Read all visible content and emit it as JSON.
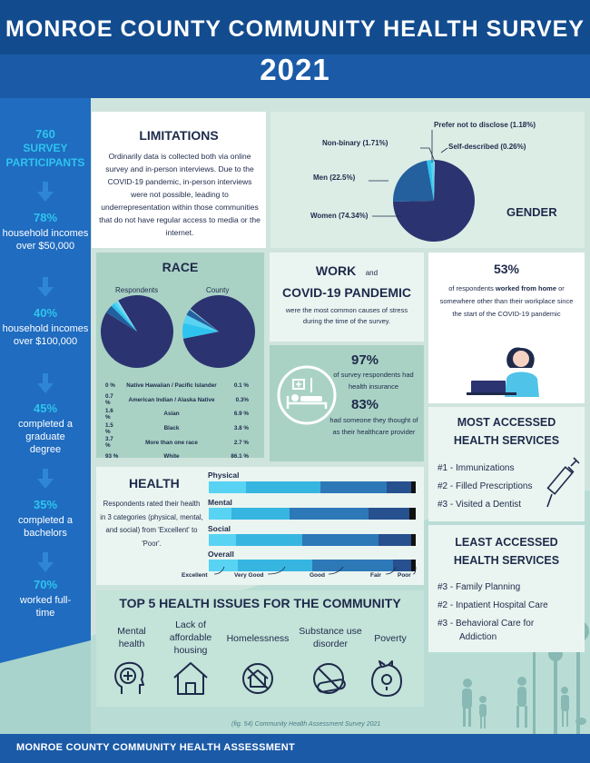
{
  "header": {
    "title": "MONROE COUNTY COMMUNITY HEALTH SURVEY",
    "year": "2021"
  },
  "colors": {
    "navy": "#2b3370",
    "mid_blue": "#245f9e",
    "light_blue": "#2ec4ef",
    "cyan": "#58d3f3",
    "accent": "#1f6cc0"
  },
  "sidebar": {
    "stats": [
      {
        "value": "760",
        "label": "SURVEY PARTICIPANTS"
      },
      {
        "value": "78%",
        "label": "household incomes over $50,000"
      },
      {
        "value": "40%",
        "label": "household incomes over $100,000"
      },
      {
        "value": "45%",
        "label": "completed a graduate degree"
      },
      {
        "value": "35%",
        "label": "completed a bachelors"
      },
      {
        "value": "70%",
        "label": "worked full-time"
      }
    ]
  },
  "limitations": {
    "title": "LIMITATIONS",
    "text": "Ordinarily data is collected both via online survey and in-person interviews. Due to the COVID-19 pandemic, in-person interviews were not possible, leading to underrepresentation within those communities that do not have regular access to media or the internet."
  },
  "gender": {
    "title": "GENDER",
    "labels": {
      "women": "Women (74.34%)",
      "men": "Men (22.5%)",
      "nonbinary": "Non-binary (1.71%)",
      "prefer_not": "Prefer not to disclose (1.18%)",
      "self_described": "Self-described (0.26%)"
    }
  },
  "race": {
    "title": "RACE",
    "respondents_label": "Respondents",
    "county_label": "County",
    "rows": [
      {
        "resp": "0 %",
        "name": "Native Hawaiian / Pacific Islander",
        "county": "0.1 %"
      },
      {
        "resp": "0.7 %",
        "name": "American Indian / Alaska Native",
        "county": "0.3%"
      },
      {
        "resp": "1.6 %",
        "name": "Asian",
        "county": "6.9 %"
      },
      {
        "resp": "1.5 %",
        "name": "Black",
        "county": "3.8 %"
      },
      {
        "resp": "3.7 %",
        "name": "More than one race",
        "county": "2.7 %"
      },
      {
        "resp": "93 %",
        "name": "White",
        "county": "86.1 %"
      }
    ]
  },
  "work": {
    "title_a": "WORK",
    "and": "and",
    "title_b": "COVID-19 PANDEMIC",
    "text": "were the most common causes of stress during the time of the survey."
  },
  "remote": {
    "pct": "53%",
    "pre": "of respondents ",
    "bold": "worked from home",
    "post": " or somewhere other than their workplace since the start of the COVID-19 pandemic"
  },
  "insurance": {
    "pct1": "97%",
    "text1": "of survey respondents had health insurance",
    "pct2": "83%",
    "text2": "had someone they thought of as their healthcare provider"
  },
  "most_accessed": {
    "title_a": "MOST ACCESSED",
    "title_b": "HEALTH SERVICES",
    "items": [
      "#1 - Immunizations",
      "#2 - Filled Prescriptions",
      "#3 - Visited a Dentist"
    ]
  },
  "least_accessed": {
    "title_a": "LEAST ACCESSED",
    "title_b": "HEALTH SERVICES",
    "items": [
      "#3 - Family Planning",
      "#2 - Inpatient Hospital Care",
      "#3 - Behavioral Care for"
    ],
    "items_bold": "Addiction"
  },
  "health": {
    "title": "HEALTH",
    "text": "Respondents rated their health in 3 categories (physical, mental, and social) from 'Excellent' to 'Poor'.",
    "legend": [
      "Excellent",
      "Very Good",
      "Good",
      "Fair",
      "Poor"
    ]
  },
  "issues": {
    "title": "TOP 5 HEALTH ISSUES FOR THE COMMUNITY",
    "items": [
      "Mental health",
      "Lack of affordable housing",
      "Homelessness",
      "Substance use disorder",
      "Poverty"
    ]
  },
  "footer": {
    "text": "MONROE COUNTY COMMUNITY HEALTH ASSESSMENT",
    "fig": "(fig. 54)  Community Health Assessment Survey 2021"
  },
  "chart_data": [
    {
      "type": "pie",
      "title": "GENDER",
      "categories": [
        "Women",
        "Men",
        "Non-binary",
        "Prefer not to disclose",
        "Self-described"
      ],
      "values": [
        74.34,
        22.5,
        1.71,
        1.18,
        0.26
      ]
    },
    {
      "type": "pie",
      "title": "Respondents",
      "categories": [
        "White",
        "More than one race",
        "Asian",
        "Black",
        "American Indian / Alaska Native",
        "Native Hawaiian / Pacific Islander"
      ],
      "values": [
        93,
        3.7,
        1.6,
        1.5,
        0.7,
        0
      ]
    },
    {
      "type": "pie",
      "title": "County",
      "categories": [
        "White",
        "Asian",
        "Black",
        "More than one race",
        "American Indian / Alaska Native",
        "Native Hawaiian / Pacific Islander"
      ],
      "values": [
        86.1,
        6.9,
        3.8,
        2.7,
        0.3,
        0.1
      ]
    },
    {
      "type": "bar",
      "orientation": "horizontal",
      "stacked": true,
      "categories": [
        "Physical",
        "Mental",
        "Social",
        "Overall"
      ],
      "series": [
        {
          "name": "Excellent",
          "values": [
            18,
            11,
            13,
            14
          ]
        },
        {
          "name": "Very Good",
          "values": [
            36,
            28,
            32,
            36
          ]
        },
        {
          "name": "Good",
          "values": [
            32,
            38,
            37,
            39
          ]
        },
        {
          "name": "Fair",
          "values": [
            12,
            20,
            16,
            9
          ]
        },
        {
          "name": "Poor",
          "values": [
            2,
            3,
            2,
            2
          ]
        }
      ]
    }
  ]
}
